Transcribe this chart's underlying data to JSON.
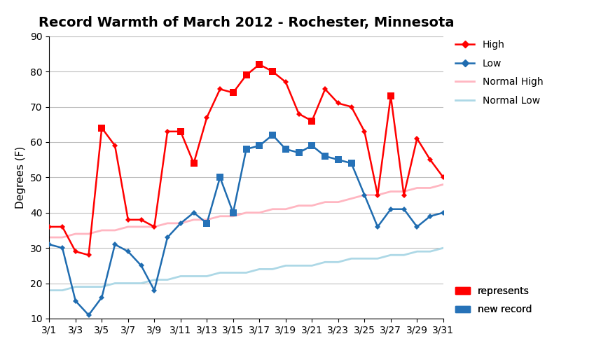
{
  "title": "Record Warmth of March 2012 - Rochester, Minnesota",
  "ylabel": "Degrees (F)",
  "ylim": [
    10,
    90
  ],
  "yticks": [
    10,
    20,
    30,
    40,
    50,
    60,
    70,
    80,
    90
  ],
  "days": [
    1,
    2,
    3,
    4,
    5,
    6,
    7,
    8,
    9,
    10,
    11,
    12,
    13,
    14,
    15,
    16,
    17,
    18,
    19,
    20,
    21,
    22,
    23,
    24,
    25,
    26,
    27,
    28,
    29,
    30,
    31
  ],
  "xtick_labels": [
    "3/1",
    "3/3",
    "3/5",
    "3/7",
    "3/9",
    "3/11",
    "3/13",
    "3/15",
    "3/17",
    "3/19",
    "3/21",
    "3/23",
    "3/25",
    "3/27",
    "3/29",
    "3/31"
  ],
  "xtick_positions": [
    1,
    3,
    5,
    7,
    9,
    11,
    13,
    15,
    17,
    19,
    21,
    23,
    25,
    27,
    29,
    31
  ],
  "high": [
    36,
    36,
    29,
    28,
    64,
    59,
    38,
    38,
    36,
    63,
    63,
    54,
    67,
    75,
    74,
    79,
    82,
    80,
    77,
    68,
    66,
    75,
    71,
    70,
    63,
    45,
    73,
    45,
    61,
    55,
    50
  ],
  "low": [
    31,
    30,
    15,
    11,
    16,
    31,
    29,
    25,
    18,
    33,
    37,
    40,
    37,
    50,
    40,
    58,
    59,
    62,
    58,
    57,
    59,
    56,
    55,
    54,
    45,
    36,
    41,
    41,
    36,
    39,
    40
  ],
  "normal_high": [
    33,
    33,
    34,
    34,
    35,
    35,
    36,
    36,
    36,
    37,
    37,
    38,
    38,
    39,
    39,
    40,
    40,
    41,
    41,
    42,
    42,
    43,
    43,
    44,
    45,
    45,
    46,
    46,
    47,
    47,
    48
  ],
  "normal_low": [
    18,
    18,
    19,
    19,
    19,
    20,
    20,
    20,
    21,
    21,
    22,
    22,
    22,
    23,
    23,
    23,
    24,
    24,
    25,
    25,
    25,
    26,
    26,
    27,
    27,
    27,
    28,
    28,
    29,
    29,
    30
  ],
  "high_record_days": [
    5,
    11,
    12,
    15,
    16,
    17,
    18,
    21,
    27
  ],
  "low_record_days": [
    13,
    14,
    15,
    16,
    17,
    18,
    19,
    20,
    21,
    22,
    23,
    24
  ],
  "high_color": "#FF0000",
  "low_color": "#1F6CB0",
  "normal_high_color": "#FFB6C1",
  "normal_low_color": "#ADD8E6",
  "record_high_color": "#FF0000",
  "record_low_color": "#2672B8",
  "bg_color": "#FFFFFF",
  "grid_color": "#C0C0C0",
  "title_fontsize": 14,
  "axis_fontsize": 11,
  "legend_fontsize": 10
}
